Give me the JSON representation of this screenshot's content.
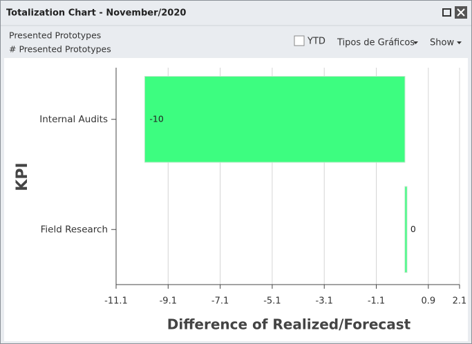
{
  "window": {
    "title": "Totalization Chart - November/2020",
    "filters": [
      "Presented Prototypes",
      "# Presented Prototypes"
    ],
    "checkbox": "YTD",
    "menus": [
      "Tipos de Gráficos",
      "Show"
    ]
  },
  "chart_data": {
    "type": "bar",
    "orientation": "horizontal",
    "categories": [
      "Internal Audits",
      "Field Research"
    ],
    "values": [
      -10,
      0
    ],
    "color": "#3dfd80",
    "xlabel": "Difference of Realized/Forecast",
    "ylabel": "KPI",
    "xlim": [
      -11.1,
      2.1
    ],
    "xticks": [
      -11.1,
      -9.1,
      -7.1,
      -5.1,
      -3.1,
      -1.1,
      0.9,
      2.1
    ],
    "grid": true
  }
}
